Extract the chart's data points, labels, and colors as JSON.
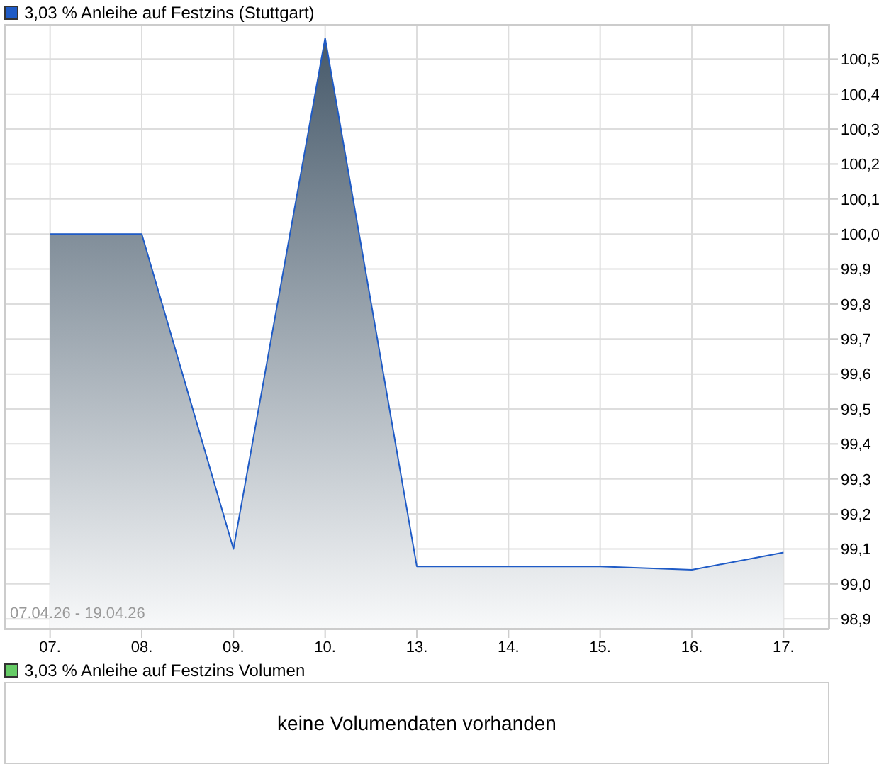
{
  "chart_data": [
    {
      "type": "area",
      "categories": [
        "07.",
        "08.",
        "09.",
        "10.",
        "13.",
        "14.",
        "15.",
        "16.",
        "17."
      ],
      "series": [
        {
          "name": "3,03 % Anleihe auf Festzins (Stuttgart)",
          "color": "#1f5bc6",
          "values": [
            100.0,
            100.0,
            99.1,
            100.56,
            99.05,
            99.05,
            99.05,
            99.04,
            99.09
          ]
        }
      ],
      "ylim": [
        98.87,
        100.6
      ],
      "yticks": [
        {
          "value": 98.9,
          "label": "98,9"
        },
        {
          "value": 99.0,
          "label": "99,0"
        },
        {
          "value": 99.1,
          "label": "99,1"
        },
        {
          "value": 99.2,
          "label": "99,2"
        },
        {
          "value": 99.3,
          "label": "99,3"
        },
        {
          "value": 99.4,
          "label": "99,4"
        },
        {
          "value": 99.5,
          "label": "99,5"
        },
        {
          "value": 99.6,
          "label": "99,6"
        },
        {
          "value": 99.7,
          "label": "99,7"
        },
        {
          "value": 99.8,
          "label": "99,8"
        },
        {
          "value": 99.9,
          "label": "99,9"
        },
        {
          "value": 100.0,
          "label": "100,0"
        },
        {
          "value": 100.1,
          "label": "100,1"
        },
        {
          "value": 100.2,
          "label": "100,2"
        },
        {
          "value": 100.3,
          "label": "100,3"
        },
        {
          "value": 100.4,
          "label": "100,4"
        },
        {
          "value": 100.5,
          "label": "100,5"
        }
      ],
      "grid": true,
      "legend": "top left",
      "annotations": [
        "07.04.26 - 19.04.26"
      ]
    },
    {
      "type": "other",
      "series": [
        {
          "name": "3,03 % Anleihe auf Festzins Volumen",
          "color": "#66cc66"
        }
      ],
      "legend": "top left",
      "annotations": [
        "keine Volumendaten vorhanden"
      ]
    }
  ]
}
